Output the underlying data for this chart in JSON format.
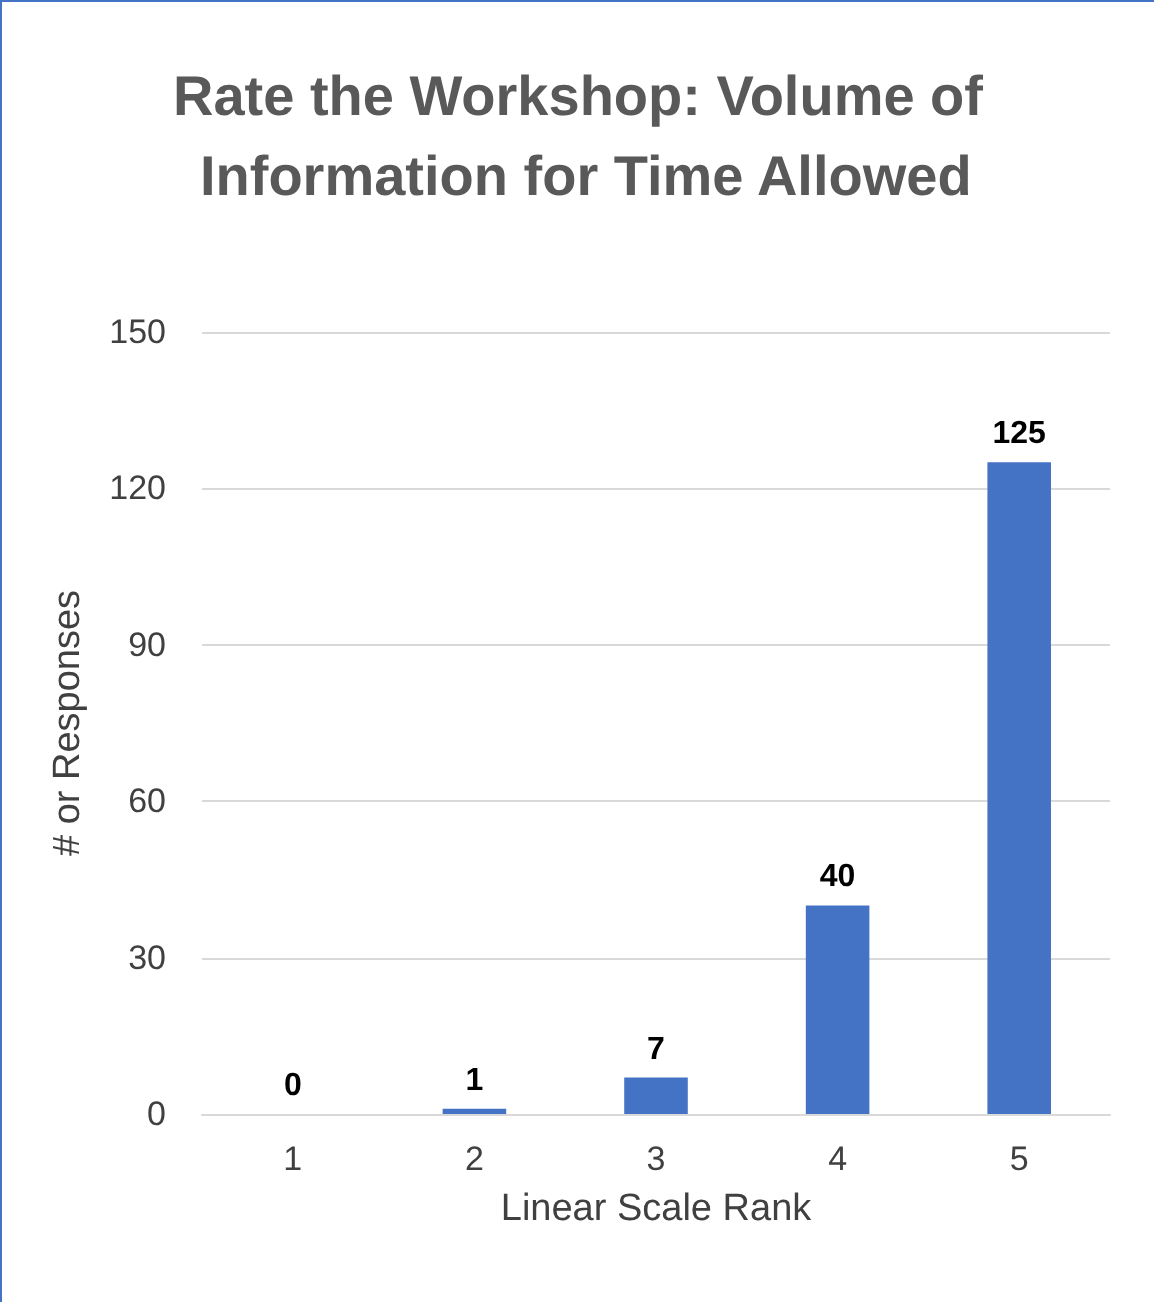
{
  "chart_data": {
    "type": "bar",
    "title": "Rate the Workshop: Volume of Information for Time Allowed",
    "xlabel": "Linear Scale Rank",
    "ylabel": "# or Responses",
    "categories": [
      "1",
      "2",
      "3",
      "4",
      "5"
    ],
    "values": [
      0,
      1,
      7,
      40,
      125
    ],
    "color": "#4472c4",
    "ylim": [
      0,
      150
    ],
    "yticks": [
      0,
      30,
      60,
      90,
      120,
      150
    ],
    "grid": "y",
    "data_labels": true
  }
}
